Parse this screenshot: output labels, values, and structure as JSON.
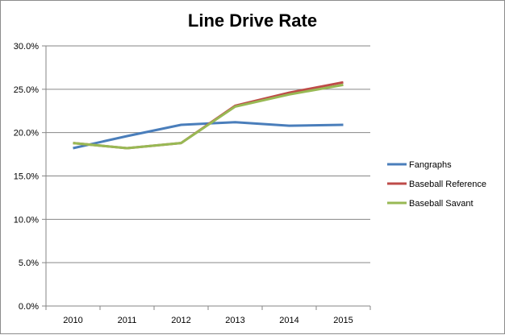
{
  "chart_data": {
    "type": "line",
    "title": "Line Drive Rate",
    "xlabel": "",
    "ylabel": "",
    "categories": [
      "2010",
      "2011",
      "2012",
      "2013",
      "2014",
      "2015"
    ],
    "y_ticks": [
      "0.0%",
      "5.0%",
      "10.0%",
      "15.0%",
      "20.0%",
      "25.0%",
      "30.0%"
    ],
    "ylim": [
      0,
      30
    ],
    "y_format": "percent",
    "grid": true,
    "legend_position": "right",
    "series": [
      {
        "name": "Fangraphs",
        "color": "#4a7ebb",
        "values": [
          18.2,
          19.6,
          20.9,
          21.2,
          20.8,
          20.9
        ]
      },
      {
        "name": "Baseball Reference",
        "color": "#be4b48",
        "values": [
          18.8,
          18.2,
          18.8,
          23.1,
          24.6,
          25.8
        ]
      },
      {
        "name": "Baseball Savant",
        "color": "#98b954",
        "values": [
          18.8,
          18.2,
          18.8,
          23.0,
          24.4,
          25.5
        ]
      }
    ]
  }
}
